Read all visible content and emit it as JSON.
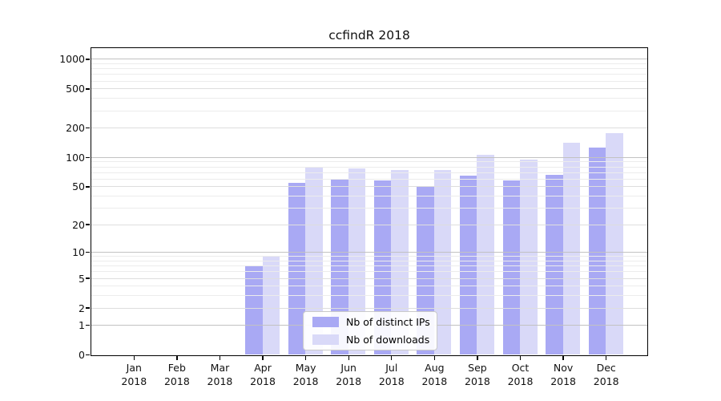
{
  "chart_data": {
    "type": "bar",
    "title": "ccfindR 2018",
    "months": [
      "Jan",
      "Feb",
      "Mar",
      "Apr",
      "May",
      "Jun",
      "Jul",
      "Aug",
      "Sep",
      "Oct",
      "Nov",
      "Dec"
    ],
    "year": "2018",
    "series": [
      {
        "name": "Nb of distinct IPs",
        "color": "#a9a9f4",
        "values": [
          0,
          0,
          0,
          7,
          54,
          59,
          57,
          50,
          65,
          58,
          66,
          126
        ]
      },
      {
        "name": "Nb of downloads",
        "color": "#d9d9f8",
        "values": [
          0,
          0,
          0,
          9,
          80,
          77,
          74,
          74,
          105,
          95,
          140,
          175
        ]
      }
    ],
    "y_axis": {
      "scale": "log10(1+x)",
      "labeled_ticks": [
        0,
        1,
        2,
        5,
        10,
        20,
        50,
        100,
        200,
        500,
        1000
      ],
      "range": [
        0,
        1320
      ]
    },
    "grid": true,
    "legend_position": "inside-bottom-center",
    "colors": {
      "major_grid": "#c2c2c2",
      "labeled_minor_grid": "#dedede",
      "minor_grid": "#ececec",
      "axis": "#000000",
      "background": "#ffffff"
    }
  }
}
